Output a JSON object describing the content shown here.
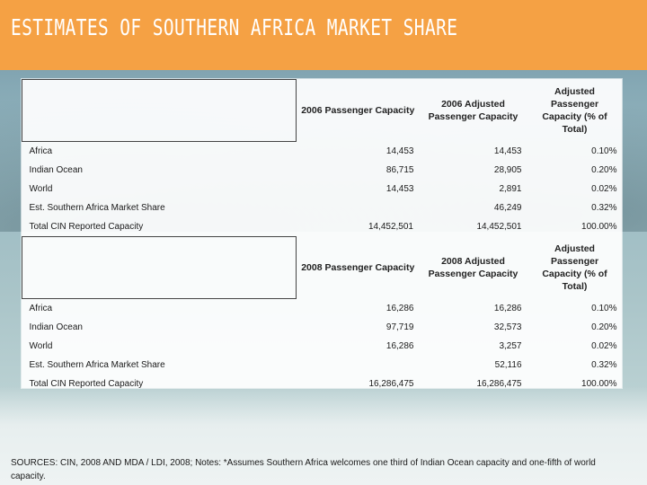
{
  "title": "ESTIMATES OF SOUTHERN AFRICA MARKET SHARE",
  "colors": {
    "header_bg": "#f5a144",
    "header_text": "#ffffff"
  },
  "section_2006": {
    "headers": [
      "2006 Passenger Capacity",
      "2006 Adjusted Passenger Capacity",
      "Adjusted Passenger Capacity (% of Total)"
    ],
    "rows": [
      {
        "label": "Africa",
        "capacity": "14,453",
        "adjusted": "14,453",
        "pct": "0.10%"
      },
      {
        "label": "Indian Ocean",
        "capacity": "86,715",
        "adjusted": "28,905",
        "pct": "0.20%"
      },
      {
        "label": "World",
        "capacity": "14,453",
        "adjusted": "2,891",
        "pct": "0.02%"
      },
      {
        "label": "Est. Southern Africa Market Share",
        "capacity": "",
        "adjusted": "46,249",
        "pct": "0.32%"
      },
      {
        "label": "Total CIN Reported Capacity",
        "capacity": "14,452,501",
        "adjusted": "14,452,501",
        "pct": "100.00%"
      }
    ]
  },
  "section_2008": {
    "headers": [
      "2008 Passenger Capacity",
      "2008 Adjusted Passenger Capacity",
      "Adjusted Passenger Capacity (% of Total)"
    ],
    "rows": [
      {
        "label": "Africa",
        "capacity": "16,286",
        "adjusted": "16,286",
        "pct": "0.10%"
      },
      {
        "label": "Indian Ocean",
        "capacity": "97,719",
        "adjusted": "32,573",
        "pct": "0.20%"
      },
      {
        "label": "World",
        "capacity": "16,286",
        "adjusted": "3,257",
        "pct": "0.02%"
      },
      {
        "label": "Est. Southern Africa Market Share",
        "capacity": "",
        "adjusted": "52,116",
        "pct": "0.32%"
      },
      {
        "label": "Total CIN Reported Capacity",
        "capacity": "16,286,475",
        "adjusted": "16,286,475",
        "pct": "100.00%"
      }
    ]
  },
  "footer": {
    "sources": "SOURCES: CIN, 2008 AND MDA / LDI, 2008; Notes: *Assumes Southern Africa welcomes one third of Indian Ocean capacity and one-fifth of world capacity."
  }
}
